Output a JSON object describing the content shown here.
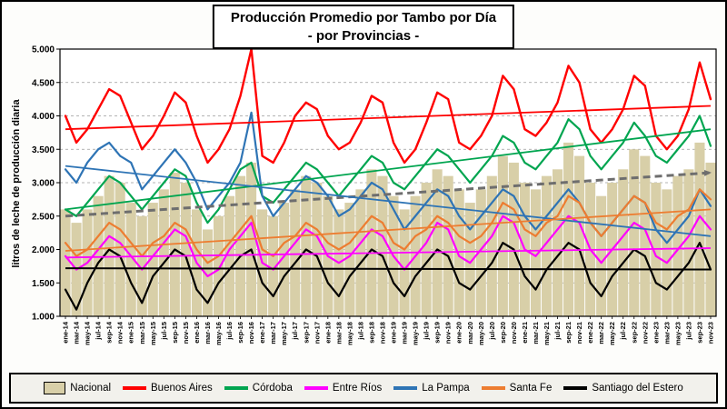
{
  "title": {
    "line1": "Producción Promedio por Tambo por Día",
    "line2": "- por Provincias -"
  },
  "y_axis_title": "litros de leche de producción diaria",
  "chart_data": {
    "type": "line",
    "title": "Producción Promedio por Tambo por Día - por Provincias -",
    "ylabel": "litros de leche de producción diaria",
    "xlabel": "",
    "ylim": [
      1.0,
      5.0
    ],
    "grid": true,
    "legend_position": "bottom",
    "yticks": [
      {
        "v": 5.0,
        "label": "5.000"
      },
      {
        "v": 4.5,
        "label": "4.500"
      },
      {
        "v": 4.0,
        "label": "4.000"
      },
      {
        "v": 3.5,
        "label": "3.500"
      },
      {
        "v": 3.0,
        "label": "3.000"
      },
      {
        "v": 2.5,
        "label": "2.500"
      },
      {
        "v": 2.0,
        "label": "2.000"
      },
      {
        "v": 1.5,
        "label": "1.500"
      },
      {
        "v": 1.0,
        "label": "1.000"
      }
    ],
    "x": [
      "ene-14",
      "mar-14",
      "may-14",
      "jul-14",
      "sep-14",
      "nov-14",
      "ene-15",
      "mar-15",
      "may-15",
      "jul-15",
      "sep-15",
      "nov-15",
      "ene-16",
      "mar-16",
      "may-16",
      "jul-16",
      "sep-16",
      "nov-16",
      "ene-17",
      "mar-17",
      "may-17",
      "jul-17",
      "sep-17",
      "nov-17",
      "ene-18",
      "mar-18",
      "may-18",
      "jul-18",
      "sep-18",
      "nov-18",
      "ene-19",
      "mar-19",
      "may-19",
      "jul-19",
      "sep-19",
      "nov-19",
      "ene-20",
      "mar-20",
      "may-20",
      "jul-20",
      "sep-20",
      "nov-20",
      "ene-21",
      "mar-21",
      "may-21",
      "jul-21",
      "sep-21",
      "nov-21",
      "ene-22",
      "mar-22",
      "may-22",
      "jul-22",
      "sep-22",
      "nov-22",
      "ene-23",
      "mar-23",
      "may-23",
      "jul-23",
      "sep-23",
      "nov-23"
    ],
    "series": [
      {
        "name": "Nacional",
        "type": "area",
        "color": "#d8cfa8",
        "values": [
          2.6,
          2.4,
          2.6,
          2.8,
          3.1,
          3.0,
          2.7,
          2.5,
          2.7,
          2.9,
          3.15,
          3.0,
          2.6,
          2.3,
          2.5,
          2.8,
          3.1,
          3.3,
          2.6,
          2.5,
          2.7,
          2.9,
          3.1,
          3.0,
          2.8,
          2.6,
          2.7,
          2.9,
          3.2,
          3.1,
          2.8,
          2.6,
          2.8,
          3.0,
          3.2,
          3.1,
          2.9,
          2.7,
          2.9,
          3.1,
          3.4,
          3.3,
          3.0,
          2.9,
          3.1,
          3.2,
          3.6,
          3.4,
          3.0,
          2.8,
          3.0,
          3.2,
          3.5,
          3.4,
          3.0,
          2.9,
          3.1,
          3.2,
          3.6,
          3.3
        ],
        "trend": {
          "start": 2.5,
          "end": 3.15,
          "color": "#6e6e6e",
          "style": "dashed",
          "width": 3,
          "arrow": true
        }
      },
      {
        "name": "Buenos Aires",
        "type": "line",
        "color": "#ff0000",
        "width": 2.4,
        "values": [
          4.0,
          3.6,
          3.8,
          4.1,
          4.4,
          4.3,
          3.9,
          3.5,
          3.7,
          4.0,
          4.35,
          4.2,
          3.7,
          3.3,
          3.5,
          3.8,
          4.3,
          5.0,
          3.4,
          3.3,
          3.6,
          4.0,
          4.2,
          4.1,
          3.7,
          3.5,
          3.6,
          3.9,
          4.3,
          4.2,
          3.6,
          3.3,
          3.5,
          3.9,
          4.35,
          4.25,
          3.6,
          3.5,
          3.7,
          4.0,
          4.6,
          4.4,
          3.8,
          3.7,
          3.9,
          4.2,
          4.75,
          4.5,
          3.8,
          3.6,
          3.8,
          4.1,
          4.6,
          4.45,
          3.7,
          3.5,
          3.7,
          4.1,
          4.8,
          4.25
        ],
        "trend": {
          "start": 3.8,
          "end": 4.15,
          "color": "#ff0000",
          "style": "solid",
          "width": 1.8,
          "arrow": false
        }
      },
      {
        "name": "Córdoba",
        "type": "line",
        "color": "#00a550",
        "width": 2.2,
        "values": [
          2.6,
          2.5,
          2.7,
          2.9,
          3.1,
          3.0,
          2.8,
          2.6,
          2.8,
          3.0,
          3.2,
          3.1,
          2.7,
          2.4,
          2.6,
          2.9,
          3.2,
          3.3,
          2.8,
          2.7,
          2.9,
          3.1,
          3.3,
          3.2,
          3.0,
          2.8,
          3.0,
          3.2,
          3.4,
          3.3,
          3.0,
          2.9,
          3.1,
          3.3,
          3.5,
          3.4,
          3.2,
          3.0,
          3.2,
          3.4,
          3.7,
          3.6,
          3.3,
          3.2,
          3.4,
          3.6,
          3.95,
          3.8,
          3.4,
          3.2,
          3.4,
          3.6,
          3.9,
          3.7,
          3.4,
          3.3,
          3.5,
          3.7,
          4.0,
          3.55
        ],
        "trend": {
          "start": 2.6,
          "end": 3.8,
          "color": "#00a550",
          "style": "solid",
          "width": 1.8,
          "arrow": false
        }
      },
      {
        "name": "Entre Ríos",
        "type": "line",
        "color": "#ff00ff",
        "width": 2.2,
        "values": [
          1.9,
          1.7,
          1.8,
          2.0,
          2.2,
          2.1,
          1.9,
          1.7,
          1.9,
          2.1,
          2.3,
          2.2,
          1.8,
          1.6,
          1.7,
          2.0,
          2.2,
          2.4,
          1.8,
          1.7,
          1.9,
          2.1,
          2.3,
          2.2,
          1.9,
          1.8,
          1.9,
          2.1,
          2.3,
          2.2,
          1.9,
          1.7,
          1.9,
          2.1,
          2.4,
          2.3,
          1.9,
          1.8,
          2.0,
          2.2,
          2.5,
          2.4,
          2.0,
          1.9,
          2.1,
          2.3,
          2.5,
          2.4,
          2.0,
          1.8,
          2.0,
          2.2,
          2.4,
          2.3,
          1.9,
          1.8,
          2.0,
          2.2,
          2.5,
          2.3
        ],
        "trend": {
          "start": 1.88,
          "end": 2.02,
          "color": "#ff00ff",
          "style": "solid",
          "width": 1.8,
          "arrow": false
        }
      },
      {
        "name": "La Pampa",
        "type": "line",
        "color": "#2e74b5",
        "width": 2.2,
        "values": [
          3.2,
          3.0,
          3.3,
          3.5,
          3.6,
          3.4,
          3.3,
          2.9,
          3.1,
          3.3,
          3.5,
          3.3,
          3.0,
          2.6,
          2.8,
          3.0,
          3.3,
          4.05,
          2.8,
          2.5,
          2.7,
          2.9,
          3.1,
          3.0,
          2.8,
          2.5,
          2.6,
          2.8,
          3.0,
          2.9,
          2.6,
          2.3,
          2.5,
          2.7,
          2.9,
          2.8,
          2.5,
          2.3,
          2.5,
          2.7,
          2.9,
          2.8,
          2.5,
          2.3,
          2.5,
          2.7,
          2.9,
          2.7,
          2.4,
          2.2,
          2.4,
          2.6,
          2.8,
          2.7,
          2.3,
          2.1,
          2.3,
          2.5,
          2.9,
          2.65
        ],
        "trend": {
          "start": 3.25,
          "end": 2.2,
          "color": "#2e74b5",
          "style": "solid",
          "width": 1.8,
          "arrow": false
        }
      },
      {
        "name": "Santa Fe",
        "type": "line",
        "color": "#ed7d31",
        "width": 2.2,
        "values": [
          2.1,
          1.9,
          2.0,
          2.2,
          2.4,
          2.3,
          2.1,
          1.9,
          2.1,
          2.2,
          2.4,
          2.3,
          2.0,
          1.8,
          1.9,
          2.1,
          2.3,
          2.5,
          2.0,
          1.9,
          2.1,
          2.2,
          2.4,
          2.3,
          2.1,
          2.0,
          2.1,
          2.3,
          2.5,
          2.4,
          2.1,
          2.0,
          2.2,
          2.3,
          2.5,
          2.4,
          2.2,
          2.1,
          2.2,
          2.4,
          2.7,
          2.6,
          2.3,
          2.2,
          2.4,
          2.5,
          2.8,
          2.7,
          2.4,
          2.2,
          2.4,
          2.6,
          2.8,
          2.7,
          2.4,
          2.3,
          2.5,
          2.6,
          2.9,
          2.75
        ],
        "trend": {
          "start": 1.98,
          "end": 2.6,
          "color": "#ed7d31",
          "style": "solid",
          "width": 1.8,
          "arrow": false
        }
      },
      {
        "name": "Santiago del Estero",
        "type": "line",
        "color": "#000000",
        "width": 2.2,
        "values": [
          1.4,
          1.1,
          1.5,
          1.8,
          2.0,
          1.9,
          1.5,
          1.2,
          1.6,
          1.8,
          2.0,
          1.9,
          1.4,
          1.2,
          1.5,
          1.7,
          1.9,
          2.0,
          1.5,
          1.3,
          1.6,
          1.8,
          2.0,
          1.9,
          1.5,
          1.3,
          1.6,
          1.8,
          2.0,
          1.9,
          1.5,
          1.3,
          1.6,
          1.8,
          2.0,
          1.9,
          1.5,
          1.4,
          1.6,
          1.8,
          2.1,
          2.0,
          1.6,
          1.4,
          1.7,
          1.9,
          2.1,
          2.0,
          1.5,
          1.3,
          1.6,
          1.8,
          2.0,
          1.9,
          1.5,
          1.4,
          1.6,
          1.8,
          2.1,
          1.7
        ],
        "trend": {
          "start": 1.72,
          "end": 1.7,
          "color": "#000000",
          "style": "solid",
          "width": 2,
          "arrow": false
        }
      }
    ]
  }
}
